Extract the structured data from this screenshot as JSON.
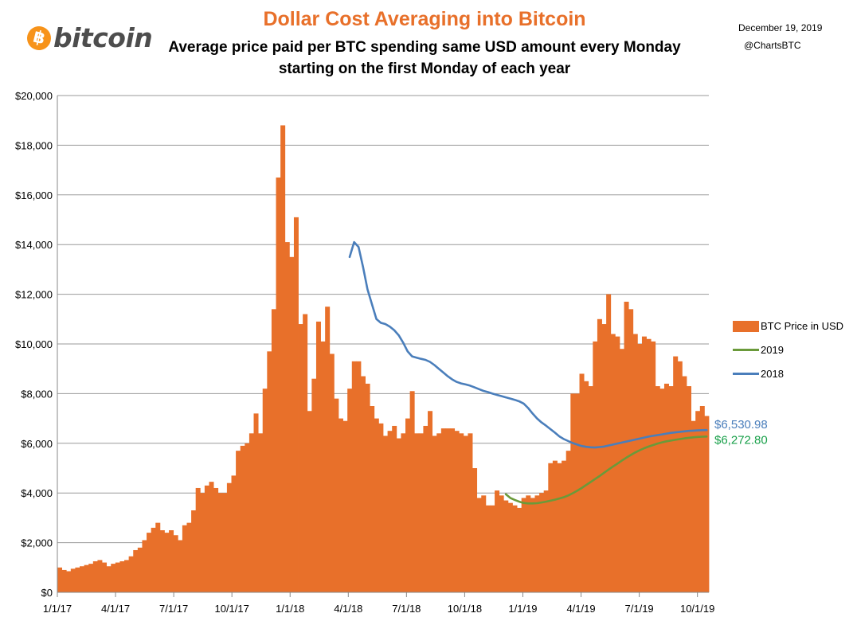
{
  "logo": {
    "symbol": "฿",
    "text": "bitcoin"
  },
  "title": "Dollar Cost Averaging into Bitcoin",
  "subtitle_line1": "Average price paid per BTC spending same USD amount every Monday",
  "subtitle_line2": "starting on the first Monday of each year",
  "date": "December 19, 2019",
  "handle": "@ChartsBTC",
  "colors": {
    "bars": "#e8702a",
    "line_2019": "#6a9a3a",
    "line_2018": "#4a7ebb",
    "label_2019": "#19a04a",
    "label_2018": "#4a7ebb",
    "grid": "#9a9a9a"
  },
  "chart_data": {
    "type": "bar",
    "x_tick_labels": [
      "1/1/17",
      "4/1/17",
      "7/1/17",
      "10/1/17",
      "1/1/18",
      "4/1/18",
      "7/1/18",
      "10/1/18",
      "1/1/19",
      "4/1/19",
      "7/1/19",
      "10/1/19"
    ],
    "y_tick_labels": [
      "$0",
      "$2,000",
      "$4,000",
      "$6,000",
      "$8,000",
      "$10,000",
      "$12,000",
      "$14,000",
      "$16,000",
      "$18,000",
      "$20,000"
    ],
    "ylim": [
      0,
      20000
    ],
    "series": [
      {
        "name": "BTC Price in USD",
        "type": "bar",
        "values": [
          1000,
          900,
          850,
          950,
          1000,
          1050,
          1100,
          1150,
          1250,
          1300,
          1200,
          1050,
          1150,
          1200,
          1250,
          1300,
          1450,
          1700,
          1800,
          2100,
          2400,
          2600,
          2800,
          2500,
          2400,
          2500,
          2300,
          2100,
          2700,
          2800,
          3300,
          4200,
          4000,
          4300,
          4450,
          4200,
          4000,
          4000,
          4400,
          4700,
          5700,
          5900,
          6000,
          6400,
          7200,
          6400,
          8200,
          9700,
          11400,
          16700,
          18800,
          14100,
          13500,
          15100,
          10800,
          11200,
          7300,
          8600,
          10900,
          10100,
          11500,
          9600,
          7800,
          7000,
          6900,
          8200,
          9300,
          9300,
          8700,
          8400,
          7500,
          7000,
          6800,
          6300,
          6500,
          6700,
          6200,
          6400,
          7000,
          8100,
          6400,
          6400,
          6700,
          7300,
          6300,
          6400,
          6600,
          6600,
          6600,
          6500,
          6400,
          6300,
          6400,
          5000,
          3800,
          3900,
          3500,
          3500,
          4100,
          3900,
          3700,
          3600,
          3500,
          3400,
          3800,
          3900,
          3800,
          3900,
          4000,
          4100,
          5200,
          5300,
          5200,
          5300,
          5700,
          8000,
          8000,
          8800,
          8500,
          8300,
          10100,
          11000,
          10800,
          12000,
          10400,
          10300,
          9800,
          11700,
          11400,
          10400,
          10000,
          10300,
          10200,
          10100,
          8300,
          8200,
          8400,
          8300,
          9500,
          9300,
          8700,
          8300,
          6900,
          7300,
          7500,
          7100
        ]
      },
      {
        "name": "2019",
        "type": "line",
        "values": [
          3950,
          3800,
          3720,
          3650,
          3600,
          3580,
          3580,
          3590,
          3620,
          3650,
          3690,
          3730,
          3780,
          3830,
          3900,
          3990,
          4090,
          4200,
          4320,
          4440,
          4560,
          4680,
          4810,
          4940,
          5060,
          5180,
          5300,
          5420,
          5530,
          5630,
          5720,
          5800,
          5870,
          5930,
          5990,
          6040,
          6080,
          6110,
          6140,
          6170,
          6200,
          6220,
          6240,
          6255,
          6265,
          6272.8
        ]
      },
      {
        "name": "2018",
        "type": "line",
        "values": [
          13500,
          14100,
          13900,
          13100,
          12200,
          11600,
          11000,
          10850,
          10800,
          10700,
          10550,
          10350,
          10050,
          9700,
          9500,
          9450,
          9400,
          9360,
          9280,
          9150,
          9000,
          8850,
          8700,
          8570,
          8470,
          8410,
          8370,
          8320,
          8250,
          8180,
          8110,
          8060,
          8000,
          7950,
          7900,
          7850,
          7800,
          7750,
          7690,
          7600,
          7420,
          7200,
          7000,
          6840,
          6710,
          6570,
          6430,
          6280,
          6170,
          6090,
          6010,
          5950,
          5890,
          5860,
          5840,
          5830,
          5850,
          5870,
          5910,
          5950,
          5990,
          6030,
          6070,
          6110,
          6150,
          6190,
          6230,
          6270,
          6300,
          6330,
          6360,
          6390,
          6420,
          6440,
          6460,
          6480,
          6500,
          6510,
          6520,
          6530,
          6530.98
        ]
      }
    ],
    "end_labels": {
      "2018": "$6,530.98",
      "2019": "$6,272.80"
    },
    "legend": [
      {
        "label": "BTC Price in USD",
        "kind": "box"
      },
      {
        "label": "2019",
        "kind": "line"
      },
      {
        "label": "2018",
        "kind": "line"
      }
    ],
    "grid": true,
    "legend_position": "right"
  }
}
